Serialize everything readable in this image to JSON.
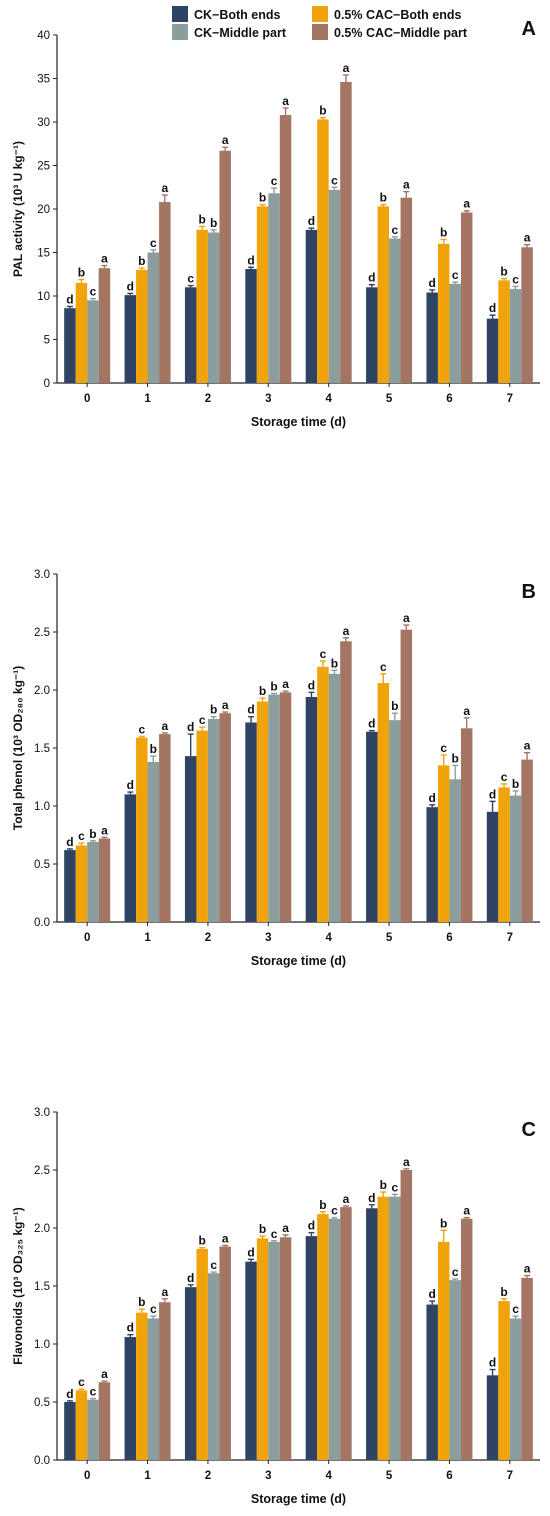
{
  "legend": {
    "items": [
      {
        "label": "CK−Both ends",
        "color": "#2f4465"
      },
      {
        "label": "0.5% CAC−Both ends",
        "color": "#f0a30a"
      },
      {
        "label": "CK−Middle part",
        "color": "#8b9d9c"
      },
      {
        "label": "0.5% CAC−Middle part",
        "color": "#a47563"
      }
    ]
  },
  "chart_data": [
    {
      "panel": "A",
      "type": "bar",
      "xlabel": "Storage time (d)",
      "ylabel": "PAL activity (10³ U kg⁻¹)",
      "ylim": [
        0,
        40
      ],
      "yticks": [
        "0",
        "5",
        "10",
        "15",
        "20",
        "25",
        "30",
        "35",
        "40"
      ],
      "categories": [
        "0",
        "1",
        "2",
        "3",
        "4",
        "5",
        "6",
        "7"
      ],
      "series": [
        {
          "name": "CK−Both ends",
          "values": [
            8.6,
            10.1,
            11.0,
            13.1,
            17.6,
            11.0,
            10.4,
            7.4
          ],
          "errors": [
            0.2,
            0.2,
            0.2,
            0.2,
            0.2,
            0.3,
            0.3,
            0.4
          ],
          "letters": [
            "d",
            "d",
            "c",
            "d",
            "d",
            "d",
            "d",
            "d"
          ]
        },
        {
          "name": "0.5% CAC−Both ends",
          "values": [
            11.5,
            13.0,
            17.6,
            20.3,
            30.3,
            20.3,
            16.0,
            11.8
          ],
          "errors": [
            0.4,
            0.2,
            0.4,
            0.2,
            0.2,
            0.2,
            0.5,
            0.2
          ],
          "letters": [
            "b",
            "b",
            "b",
            "b",
            "b",
            "b",
            "b",
            "b"
          ]
        },
        {
          "name": "CK−Middle part",
          "values": [
            9.5,
            15.0,
            17.3,
            21.8,
            22.2,
            16.6,
            11.4,
            10.8
          ],
          "errors": [
            0.2,
            0.3,
            0.3,
            0.6,
            0.3,
            0.2,
            0.2,
            0.3
          ],
          "letters": [
            "c",
            "c",
            "b",
            "c",
            "c",
            "c",
            "c",
            "c"
          ]
        },
        {
          "name": "0.5% CAC−Middle part",
          "values": [
            13.2,
            20.8,
            26.7,
            30.8,
            34.6,
            21.3,
            19.6,
            15.6
          ],
          "errors": [
            0.3,
            0.8,
            0.4,
            0.8,
            0.8,
            0.7,
            0.2,
            0.3
          ],
          "letters": [
            "a",
            "a",
            "a",
            "a",
            "a",
            "a",
            "a",
            "a"
          ]
        }
      ]
    },
    {
      "panel": "B",
      "type": "bar",
      "xlabel": "Storage time (d)",
      "ylabel": "Total phenol (10³ OD₂₈₀ kg⁻¹)",
      "ylim": [
        0,
        3.0
      ],
      "yticks": [
        "0.0",
        "0.5",
        "1.0",
        "1.5",
        "2.0",
        "2.5",
        "3.0"
      ],
      "categories": [
        "0",
        "1",
        "2",
        "3",
        "4",
        "5",
        "6",
        "7"
      ],
      "series": [
        {
          "name": "CK−Both ends",
          "values": [
            0.62,
            1.1,
            1.43,
            1.72,
            1.94,
            1.64,
            0.99,
            0.95
          ],
          "errors": [
            0.01,
            0.02,
            0.19,
            0.05,
            0.04,
            0.01,
            0.02,
            0.09
          ],
          "letters": [
            "d",
            "d",
            "d",
            "d",
            "d",
            "d",
            "d",
            "d"
          ]
        },
        {
          "name": "0.5% CAC−Both ends",
          "values": [
            0.66,
            1.59,
            1.65,
            1.9,
            2.2,
            2.06,
            1.35,
            1.16
          ],
          "errors": [
            0.02,
            0.01,
            0.03,
            0.03,
            0.05,
            0.08,
            0.09,
            0.03
          ],
          "letters": [
            "c",
            "c",
            "c",
            "b",
            "c",
            "c",
            "c",
            "c"
          ]
        },
        {
          "name": "CK−Middle part",
          "values": [
            0.69,
            1.38,
            1.75,
            1.96,
            2.14,
            1.74,
            1.23,
            1.09
          ],
          "errors": [
            0.01,
            0.05,
            0.02,
            0.01,
            0.03,
            0.06,
            0.12,
            0.04
          ],
          "letters": [
            "b",
            "b",
            "b",
            "b",
            "b",
            "b",
            "b",
            "b"
          ]
        },
        {
          "name": "0.5% CAC−Middle part",
          "values": [
            0.72,
            1.62,
            1.8,
            1.98,
            2.42,
            2.52,
            1.67,
            1.4
          ],
          "errors": [
            0.01,
            0.01,
            0.01,
            0.01,
            0.03,
            0.04,
            0.09,
            0.06
          ],
          "letters": [
            "a",
            "a",
            "a",
            "a",
            "a",
            "a",
            "a",
            "a"
          ]
        }
      ]
    },
    {
      "panel": "C",
      "type": "bar",
      "xlabel": "Storage time (d)",
      "ylabel": "Flavonoids (10³ OD₃₂₅ kg⁻¹)",
      "ylim": [
        0,
        3.0
      ],
      "yticks": [
        "0.0",
        "0.5",
        "1.0",
        "1.5",
        "2.0",
        "2.5",
        "3.0"
      ],
      "categories": [
        "0",
        "1",
        "2",
        "3",
        "4",
        "5",
        "6",
        "7"
      ],
      "series": [
        {
          "name": "CK−Both ends",
          "values": [
            0.5,
            1.06,
            1.49,
            1.71,
            1.93,
            2.17,
            1.34,
            0.73
          ],
          "errors": [
            0.01,
            0.02,
            0.02,
            0.02,
            0.03,
            0.03,
            0.03,
            0.05
          ],
          "letters": [
            "d",
            "d",
            "d",
            "d",
            "d",
            "d",
            "d",
            "d"
          ]
        },
        {
          "name": "0.5% CAC−Both ends",
          "values": [
            0.6,
            1.27,
            1.82,
            1.91,
            2.12,
            2.27,
            1.88,
            1.37
          ],
          "errors": [
            0.01,
            0.03,
            0.01,
            0.02,
            0.02,
            0.04,
            0.1,
            0.02
          ],
          "letters": [
            "c",
            "b",
            "b",
            "b",
            "b",
            "b",
            "b",
            "b"
          ]
        },
        {
          "name": "CK−Middle part",
          "values": [
            0.52,
            1.22,
            1.61,
            1.88,
            2.08,
            2.27,
            1.55,
            1.22
          ],
          "errors": [
            0.01,
            0.02,
            0.01,
            0.01,
            0.01,
            0.02,
            0.01,
            0.02
          ],
          "letters": [
            "c",
            "c",
            "c",
            "c",
            "c",
            "c",
            "c",
            "c"
          ]
        },
        {
          "name": "0.5% CAC−Middle part",
          "values": [
            0.67,
            1.36,
            1.84,
            1.92,
            2.18,
            2.5,
            2.08,
            1.57
          ],
          "errors": [
            0.01,
            0.03,
            0.01,
            0.02,
            0.01,
            0.01,
            0.01,
            0.02
          ],
          "letters": [
            "a",
            "a",
            "a",
            "a",
            "a",
            "a",
            "a",
            "a"
          ]
        }
      ]
    }
  ]
}
